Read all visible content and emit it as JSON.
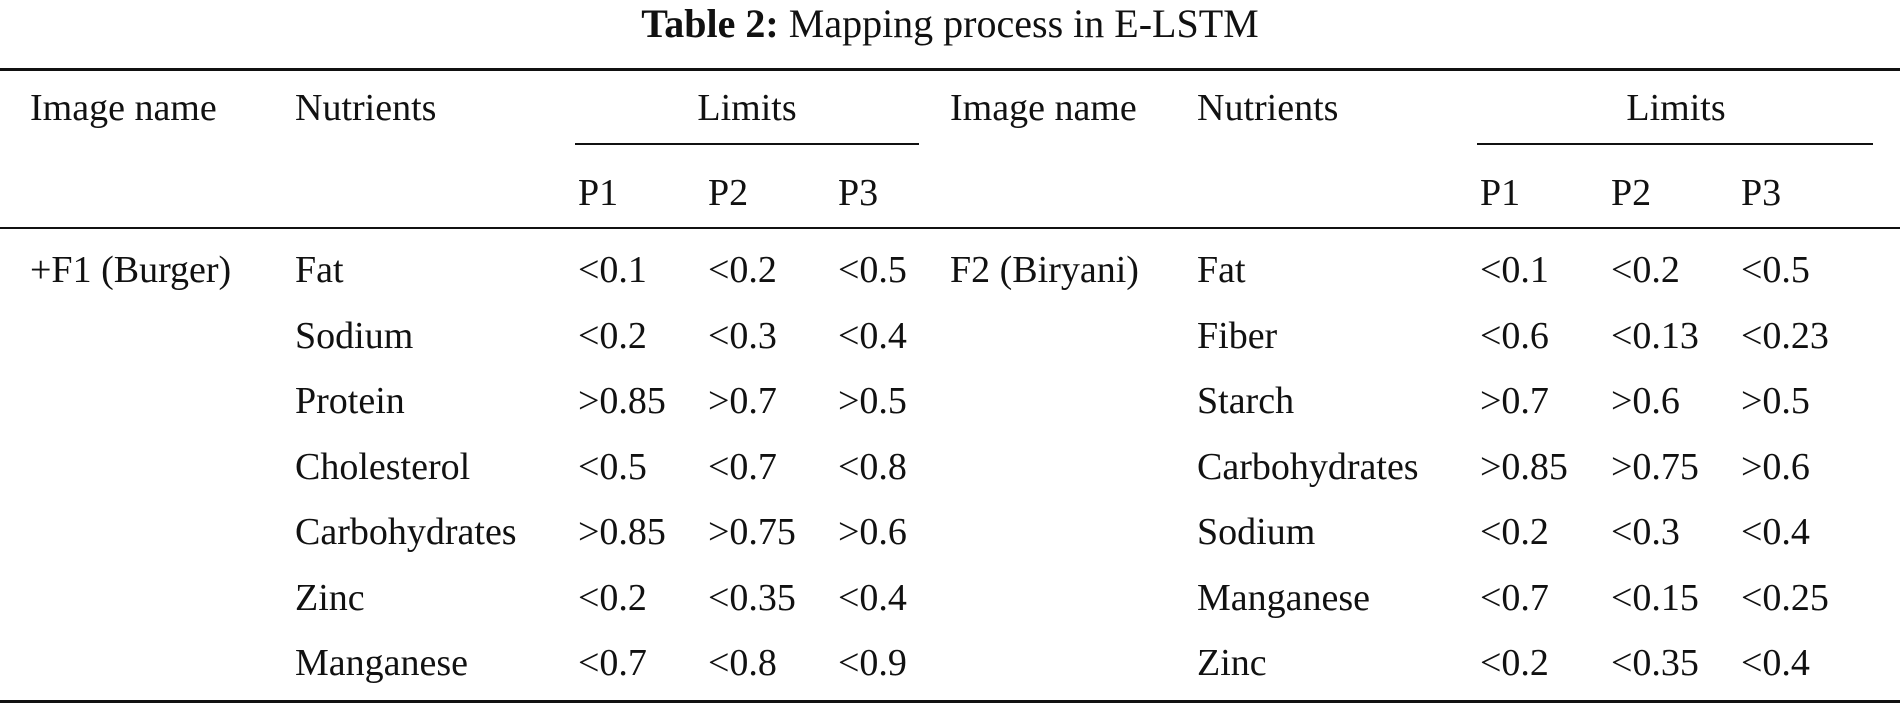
{
  "caption": {
    "label": "Table 2:",
    "text": "Mapping process in E-LSTM"
  },
  "headers": {
    "image_name": "Image name",
    "nutrients": "Nutrients",
    "limits": "Limits",
    "p_cols": [
      "P1",
      "P2",
      "P3"
    ]
  },
  "groups": [
    {
      "image_name": "+F1 (Burger)",
      "rows": [
        {
          "nutrient": "Fat",
          "p": [
            "<0.1",
            "<0.2",
            "<0.5"
          ]
        },
        {
          "nutrient": "Sodium",
          "p": [
            "<0.2",
            "<0.3",
            "<0.4"
          ]
        },
        {
          "nutrient": "Protein",
          "p": [
            ">0.85",
            ">0.7",
            ">0.5"
          ]
        },
        {
          "nutrient": "Cholesterol",
          "p": [
            "<0.5",
            "<0.7",
            "<0.8"
          ]
        },
        {
          "nutrient": "Carbohydrates",
          "p": [
            ">0.85",
            ">0.75",
            ">0.6"
          ]
        },
        {
          "nutrient": "Zinc",
          "p": [
            "<0.2",
            "<0.35",
            "<0.4"
          ]
        },
        {
          "nutrient": "Manganese",
          "p": [
            "<0.7",
            "<0.8",
            "<0.9"
          ]
        }
      ]
    },
    {
      "image_name": "F2 (Biryani)",
      "rows": [
        {
          "nutrient": "Fat",
          "p": [
            "<0.1",
            "<0.2",
            "<0.5"
          ]
        },
        {
          "nutrient": "Fiber",
          "p": [
            "<0.6",
            "<0.13",
            "<0.23"
          ]
        },
        {
          "nutrient": "Starch",
          "p": [
            ">0.7",
            ">0.6",
            ">0.5"
          ]
        },
        {
          "nutrient": "Carbohydrates",
          "p": [
            ">0.85",
            ">0.75",
            ">0.6"
          ]
        },
        {
          "nutrient": "Sodium",
          "p": [
            "<0.2",
            "<0.3",
            "<0.4"
          ]
        },
        {
          "nutrient": "Manganese",
          "p": [
            "<0.7",
            "<0.15",
            "<0.25"
          ]
        },
        {
          "nutrient": "Zinc",
          "p": [
            "<0.2",
            "<0.35",
            "<0.4"
          ]
        }
      ]
    }
  ]
}
